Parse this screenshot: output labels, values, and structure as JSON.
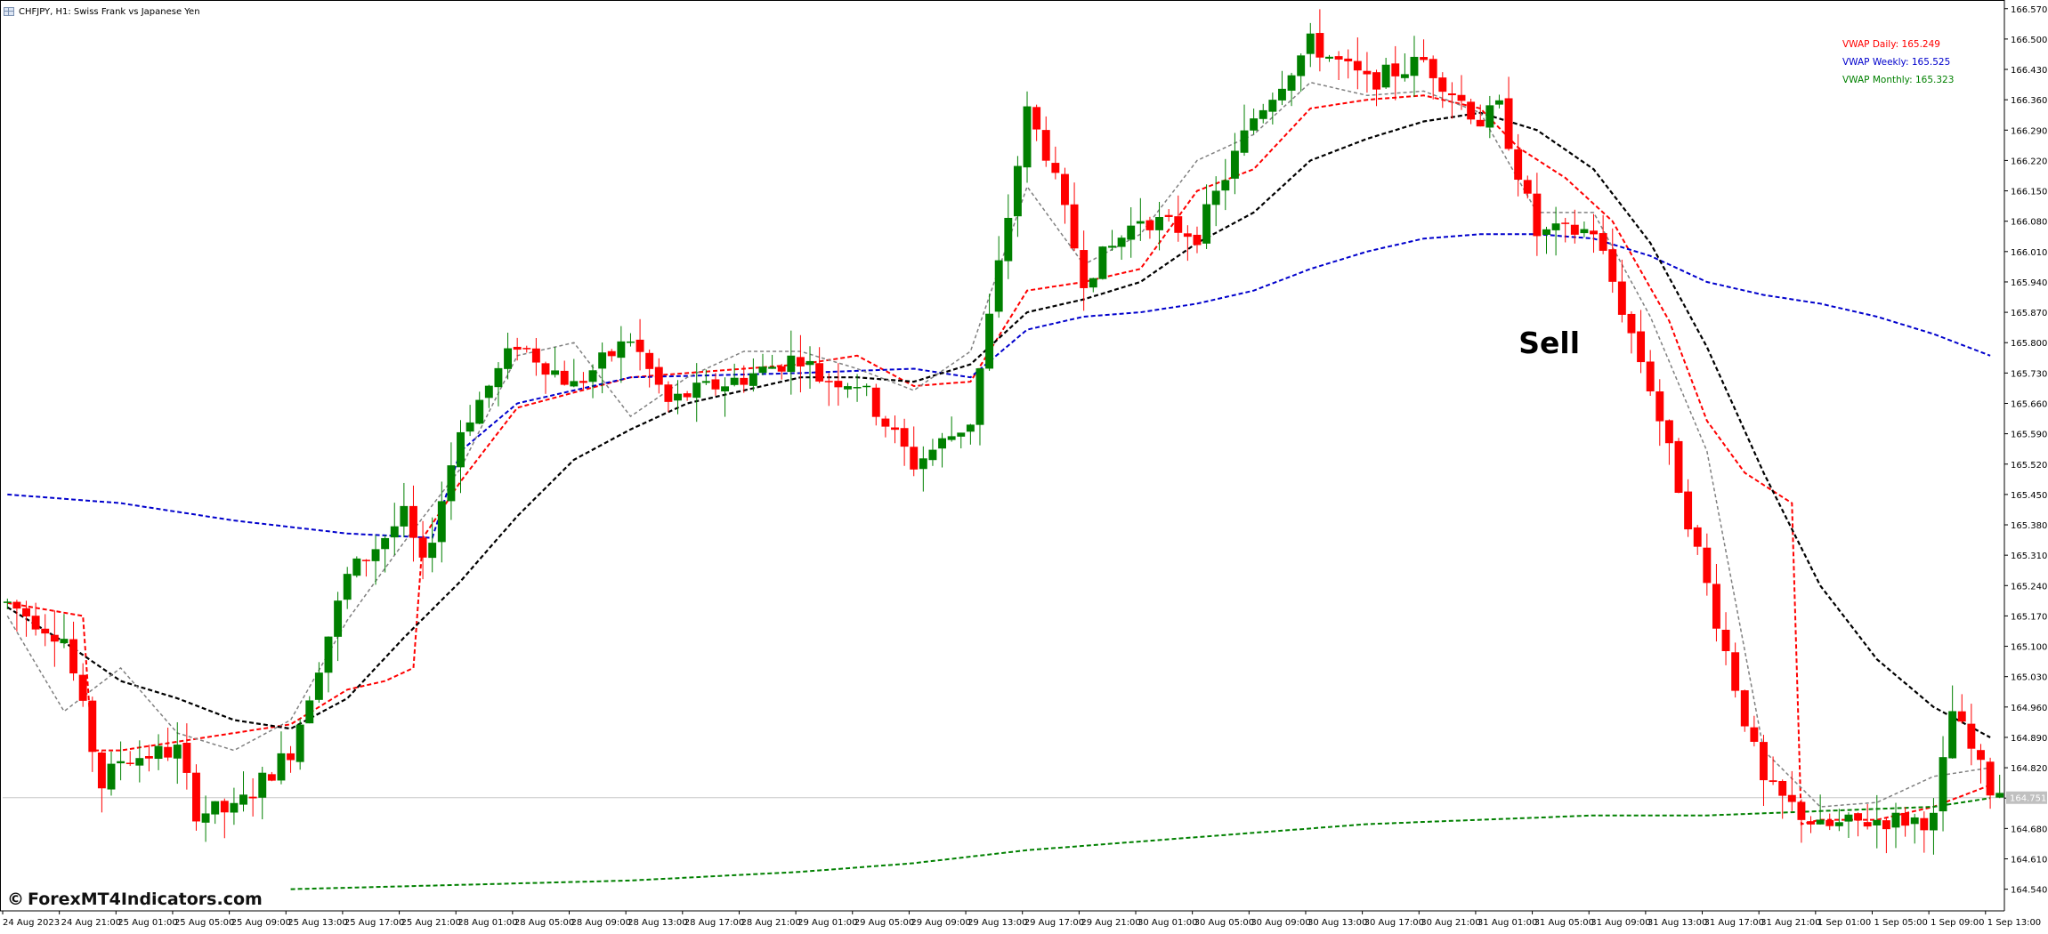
{
  "window": {
    "title": "CHFJPY, H1:  Swiss Frank vs Japanese Yen",
    "icon": "chart-grid-icon"
  },
  "watermark": {
    "copyright_symbol": "©",
    "text": "ForexMT4Indicators.com"
  },
  "annotation": {
    "text": "Sell",
    "at_bar": 161,
    "price": 165.8
  },
  "legend": [
    {
      "text": "VWAP Daily: 165.249",
      "color": "#ff0000"
    },
    {
      "text": "VWAP Weekly: 165.525",
      "color": "#0000cc"
    },
    {
      "text": "VWAP Monthly: 165.323",
      "color": "#008000"
    }
  ],
  "current_price_label": "164.751",
  "colors": {
    "bull": "#008000",
    "bear": "#ff0000",
    "vwap_daily": "#ff0000",
    "vwap_weekly": "#0000cc",
    "vwap_monthly": "#008000",
    "ma_slow": "#000000",
    "ma_fast": "#808080",
    "bid_line": "#c8c8c8",
    "axis": "#000000"
  },
  "chart_data": {
    "type": "candlestick",
    "symbol": "CHFJPY",
    "timeframe": "H1",
    "ylim": [
      164.49,
      166.59
    ],
    "y_ticks": [
      "166.570",
      "166.500",
      "166.430",
      "166.360",
      "166.290",
      "166.220",
      "166.150",
      "166.080",
      "166.010",
      "165.940",
      "165.870",
      "165.800",
      "165.730",
      "165.660",
      "165.590",
      "165.520",
      "165.450",
      "165.380",
      "165.310",
      "165.240",
      "165.170",
      "165.100",
      "165.030",
      "164.960",
      "164.890",
      "164.820",
      "164.750",
      "164.680",
      "164.610",
      "164.540"
    ],
    "x_ticks": [
      {
        "label": "24 Aug 2023",
        "bar": 0
      },
      {
        "label": "24 Aug 21:00",
        "bar": 6
      },
      {
        "label": "25 Aug 01:00",
        "bar": 12
      },
      {
        "label": "25 Aug 05:00",
        "bar": 18
      },
      {
        "label": "25 Aug 09:00",
        "bar": 24
      },
      {
        "label": "25 Aug 13:00",
        "bar": 30
      },
      {
        "label": "25 Aug 17:00",
        "bar": 36
      },
      {
        "label": "25 Aug 21:00",
        "bar": 42
      },
      {
        "label": "28 Aug 01:00",
        "bar": 48
      },
      {
        "label": "28 Aug 05:00",
        "bar": 54
      },
      {
        "label": "28 Aug 09:00",
        "bar": 60
      },
      {
        "label": "28 Aug 13:00",
        "bar": 66
      },
      {
        "label": "28 Aug 17:00",
        "bar": 72
      },
      {
        "label": "28 Aug 21:00",
        "bar": 78
      },
      {
        "label": "29 Aug 01:00",
        "bar": 84
      },
      {
        "label": "29 Aug 05:00",
        "bar": 90
      },
      {
        "label": "29 Aug 09:00",
        "bar": 96
      },
      {
        "label": "29 Aug 13:00",
        "bar": 102
      },
      {
        "label": "29 Aug 17:00",
        "bar": 108
      },
      {
        "label": "29 Aug 21:00",
        "bar": 114
      },
      {
        "label": "30 Aug 01:00",
        "bar": 120
      },
      {
        "label": "30 Aug 05:00",
        "bar": 126
      },
      {
        "label": "30 Aug 09:00",
        "bar": 132
      },
      {
        "label": "30 Aug 13:00",
        "bar": 138
      },
      {
        "label": "30 Aug 17:00",
        "bar": 144
      },
      {
        "label": "30 Aug 21:00",
        "bar": 150
      },
      {
        "label": "31 Aug 01:00",
        "bar": 156
      },
      {
        "label": "31 Aug 05:00",
        "bar": 162
      },
      {
        "label": "31 Aug 09:00",
        "bar": 168
      },
      {
        "label": "31 Aug 13:00",
        "bar": 174
      },
      {
        "label": "31 Aug 17:00",
        "bar": 180
      },
      {
        "label": "31 Aug 21:00",
        "bar": 186
      },
      {
        "label": "1 Sep 01:00",
        "bar": 192
      },
      {
        "label": "1 Sep 05:00",
        "bar": 198
      },
      {
        "label": "1 Sep 09:00",
        "bar": 204
      },
      {
        "label": "1 Sep 13:00",
        "bar": 210
      }
    ],
    "bid_price": 164.751,
    "series": [
      {
        "name": "VWAP Daily",
        "anchors": [
          [
            0,
            165.2
          ],
          [
            8,
            165.17
          ],
          [
            9,
            164.86
          ],
          [
            12,
            164.86
          ],
          [
            18,
            164.88
          ],
          [
            24,
            164.9
          ],
          [
            30,
            164.92
          ],
          [
            36,
            165.0
          ],
          [
            40,
            165.02
          ],
          [
            43,
            165.05
          ],
          [
            44,
            165.35
          ],
          [
            48,
            165.48
          ],
          [
            54,
            165.65
          ],
          [
            66,
            165.72
          ],
          [
            78,
            165.74
          ],
          [
            84,
            165.75
          ],
          [
            90,
            165.77
          ],
          [
            96,
            165.7
          ],
          [
            102,
            165.71
          ],
          [
            108,
            165.92
          ],
          [
            114,
            165.94
          ],
          [
            120,
            165.97
          ],
          [
            126,
            166.15
          ],
          [
            132,
            166.2
          ],
          [
            138,
            166.34
          ],
          [
            144,
            166.36
          ],
          [
            150,
            166.37
          ],
          [
            156,
            166.34
          ],
          [
            160,
            166.25
          ],
          [
            165,
            166.18
          ],
          [
            170,
            166.08
          ],
          [
            176,
            165.85
          ],
          [
            180,
            165.62
          ],
          [
            184,
            165.5
          ],
          [
            189,
            165.43
          ],
          [
            190,
            164.69
          ],
          [
            192,
            164.7
          ],
          [
            198,
            164.7
          ],
          [
            204,
            164.73
          ],
          [
            210,
            164.78
          ]
        ]
      },
      {
        "name": "VWAP Weekly",
        "anchors": [
          [
            0,
            165.45
          ],
          [
            12,
            165.43
          ],
          [
            24,
            165.39
          ],
          [
            36,
            165.36
          ],
          [
            45,
            165.35
          ],
          [
            48,
            165.55
          ],
          [
            54,
            165.66
          ],
          [
            66,
            165.72
          ],
          [
            84,
            165.73
          ],
          [
            96,
            165.74
          ],
          [
            102,
            165.72
          ],
          [
            108,
            165.83
          ],
          [
            114,
            165.86
          ],
          [
            120,
            165.87
          ],
          [
            126,
            165.89
          ],
          [
            132,
            165.92
          ],
          [
            138,
            165.97
          ],
          [
            144,
            166.01
          ],
          [
            150,
            166.04
          ],
          [
            156,
            166.05
          ],
          [
            162,
            166.05
          ],
          [
            168,
            166.04
          ],
          [
            174,
            166.0
          ],
          [
            180,
            165.94
          ],
          [
            186,
            165.91
          ],
          [
            192,
            165.89
          ],
          [
            198,
            165.86
          ],
          [
            204,
            165.82
          ],
          [
            210,
            165.77
          ]
        ]
      },
      {
        "name": "VWAP Monthly",
        "anchors": [
          [
            30,
            164.54
          ],
          [
            48,
            164.55
          ],
          [
            66,
            164.56
          ],
          [
            84,
            164.58
          ],
          [
            96,
            164.6
          ],
          [
            108,
            164.63
          ],
          [
            120,
            164.65
          ],
          [
            132,
            164.67
          ],
          [
            144,
            164.69
          ],
          [
            156,
            164.7
          ],
          [
            168,
            164.71
          ],
          [
            180,
            164.71
          ],
          [
            192,
            164.72
          ],
          [
            204,
            164.73
          ],
          [
            210,
            164.75
          ]
        ]
      },
      {
        "name": "Slow MA",
        "anchors": [
          [
            0,
            165.19
          ],
          [
            6,
            165.11
          ],
          [
            12,
            165.02
          ],
          [
            18,
            164.98
          ],
          [
            24,
            164.93
          ],
          [
            30,
            164.91
          ],
          [
            36,
            164.98
          ],
          [
            42,
            165.12
          ],
          [
            48,
            165.25
          ],
          [
            54,
            165.4
          ],
          [
            60,
            165.53
          ],
          [
            66,
            165.6
          ],
          [
            72,
            165.66
          ],
          [
            78,
            165.69
          ],
          [
            84,
            165.72
          ],
          [
            90,
            165.72
          ],
          [
            96,
            165.71
          ],
          [
            102,
            165.75
          ],
          [
            108,
            165.87
          ],
          [
            114,
            165.9
          ],
          [
            120,
            165.94
          ],
          [
            126,
            166.03
          ],
          [
            132,
            166.1
          ],
          [
            138,
            166.22
          ],
          [
            144,
            166.27
          ],
          [
            150,
            166.31
          ],
          [
            156,
            166.33
          ],
          [
            162,
            166.29
          ],
          [
            168,
            166.2
          ],
          [
            174,
            166.03
          ],
          [
            180,
            165.79
          ],
          [
            186,
            165.5
          ],
          [
            192,
            165.24
          ],
          [
            198,
            165.07
          ],
          [
            204,
            164.96
          ],
          [
            210,
            164.89
          ]
        ]
      },
      {
        "name": "Fast MA",
        "anchors": [
          [
            0,
            165.17
          ],
          [
            6,
            164.95
          ],
          [
            12,
            165.05
          ],
          [
            18,
            164.9
          ],
          [
            24,
            164.86
          ],
          [
            30,
            164.93
          ],
          [
            36,
            165.16
          ],
          [
            42,
            165.34
          ],
          [
            48,
            165.51
          ],
          [
            54,
            165.77
          ],
          [
            60,
            165.8
          ],
          [
            66,
            165.63
          ],
          [
            72,
            165.72
          ],
          [
            78,
            165.78
          ],
          [
            84,
            165.78
          ],
          [
            90,
            165.74
          ],
          [
            96,
            165.69
          ],
          [
            102,
            165.78
          ],
          [
            108,
            166.16
          ],
          [
            114,
            165.98
          ],
          [
            120,
            166.05
          ],
          [
            126,
            166.22
          ],
          [
            132,
            166.28
          ],
          [
            138,
            166.4
          ],
          [
            144,
            166.37
          ],
          [
            150,
            166.38
          ],
          [
            156,
            166.33
          ],
          [
            162,
            166.1
          ],
          [
            168,
            166.1
          ],
          [
            174,
            165.86
          ],
          [
            180,
            165.55
          ],
          [
            186,
            164.86
          ],
          [
            192,
            164.73
          ],
          [
            198,
            164.74
          ],
          [
            204,
            164.8
          ],
          [
            210,
            164.82
          ]
        ]
      }
    ],
    "candle_anchors": [
      [
        0,
        165.2
      ],
      [
        6,
        165.12
      ],
      [
        10,
        164.78
      ],
      [
        12,
        164.84
      ],
      [
        18,
        164.86
      ],
      [
        20,
        164.72
      ],
      [
        24,
        164.72
      ],
      [
        30,
        164.86
      ],
      [
        36,
        165.26
      ],
      [
        42,
        165.4
      ],
      [
        44,
        165.28
      ],
      [
        48,
        165.6
      ],
      [
        54,
        165.8
      ],
      [
        60,
        165.7
      ],
      [
        66,
        165.81
      ],
      [
        70,
        165.66
      ],
      [
        72,
        165.68
      ],
      [
        78,
        165.72
      ],
      [
        84,
        165.77
      ],
      [
        86,
        165.72
      ],
      [
        90,
        165.71
      ],
      [
        96,
        165.52
      ],
      [
        102,
        165.62
      ],
      [
        108,
        166.33
      ],
      [
        110,
        166.24
      ],
      [
        114,
        165.95
      ],
      [
        120,
        166.09
      ],
      [
        126,
        166.05
      ],
      [
        132,
        166.32
      ],
      [
        138,
        166.49
      ],
      [
        144,
        166.4
      ],
      [
        150,
        166.45
      ],
      [
        156,
        166.31
      ],
      [
        158,
        166.34
      ],
      [
        162,
        166.05
      ],
      [
        168,
        166.06
      ],
      [
        174,
        165.7
      ],
      [
        180,
        165.24
      ],
      [
        186,
        164.78
      ],
      [
        192,
        164.68
      ],
      [
        198,
        164.7
      ],
      [
        204,
        164.7
      ],
      [
        206,
        164.95
      ],
      [
        210,
        164.77
      ]
    ]
  }
}
